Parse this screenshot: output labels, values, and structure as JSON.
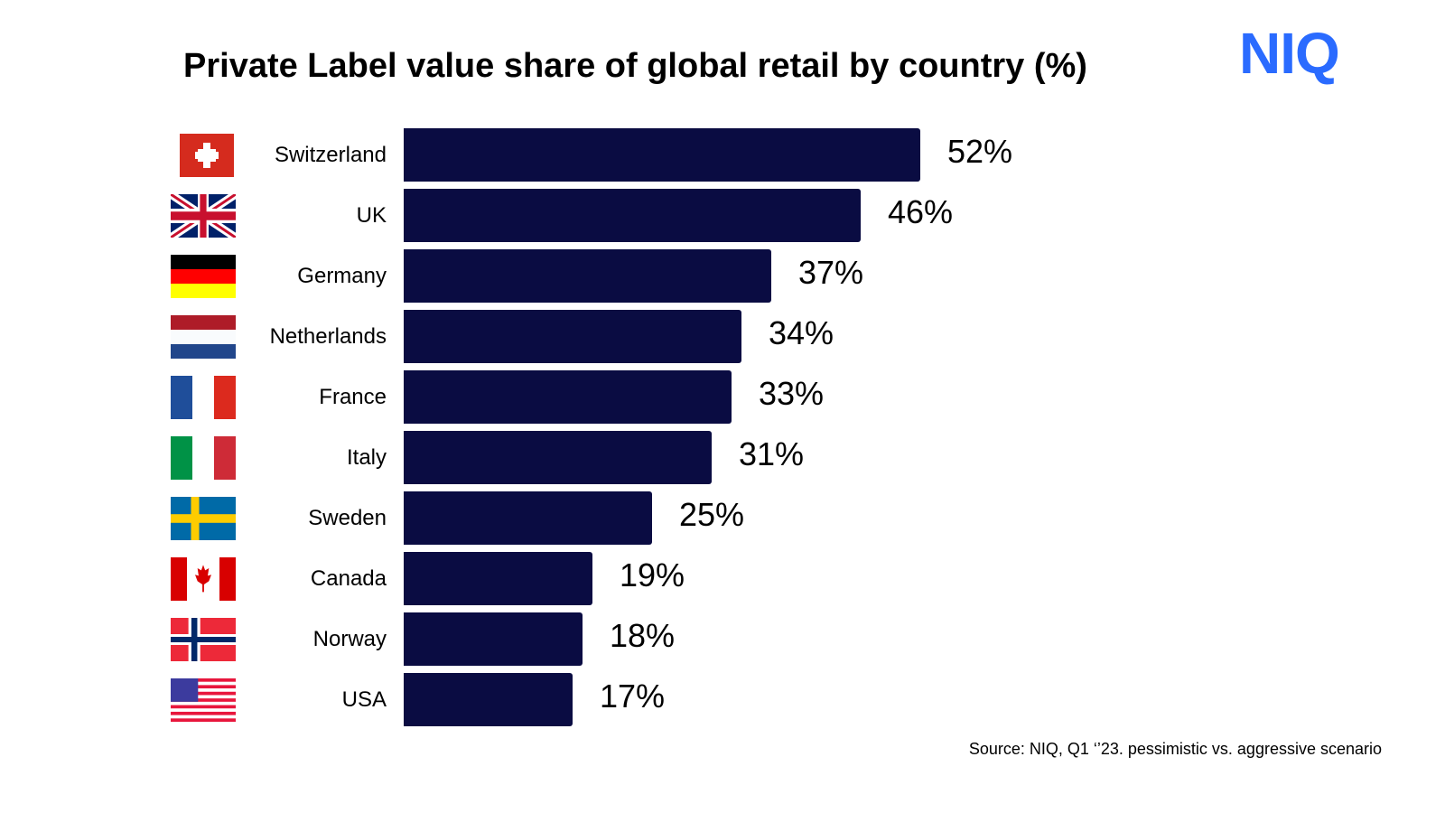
{
  "title": "Private Label value share of global retail by country (%)",
  "logo_text": "NIQ",
  "source": "Source: NIQ, Q1 ‘’23. pessimistic vs. aggressive scenario",
  "colors": {
    "bar": "#0a0c42",
    "logo": "#2a6bff"
  },
  "chart_data": {
    "type": "bar",
    "orientation": "horizontal",
    "title": "Private Label value share of global retail by country (%)",
    "categories": [
      "Switzerland",
      "UK",
      "Germany",
      "Netherlands",
      "France",
      "Italy",
      "Sweden",
      "Canada",
      "Norway",
      "USA"
    ],
    "values": [
      52,
      46,
      37,
      34,
      33,
      31,
      25,
      19,
      18,
      17
    ],
    "data_labels": [
      "52%",
      "46%",
      "37%",
      "34%",
      "33%",
      "31%",
      "25%",
      "19%",
      "18%",
      "17%"
    ],
    "flag_icons": [
      "switzerland-flag-icon",
      "uk-flag-icon",
      "germany-flag-icon",
      "netherlands-flag-icon",
      "france-flag-icon",
      "italy-flag-icon",
      "sweden-flag-icon",
      "canada-flag-icon",
      "norway-flag-icon",
      "usa-flag-icon"
    ],
    "grid": false,
    "legend": "none"
  }
}
